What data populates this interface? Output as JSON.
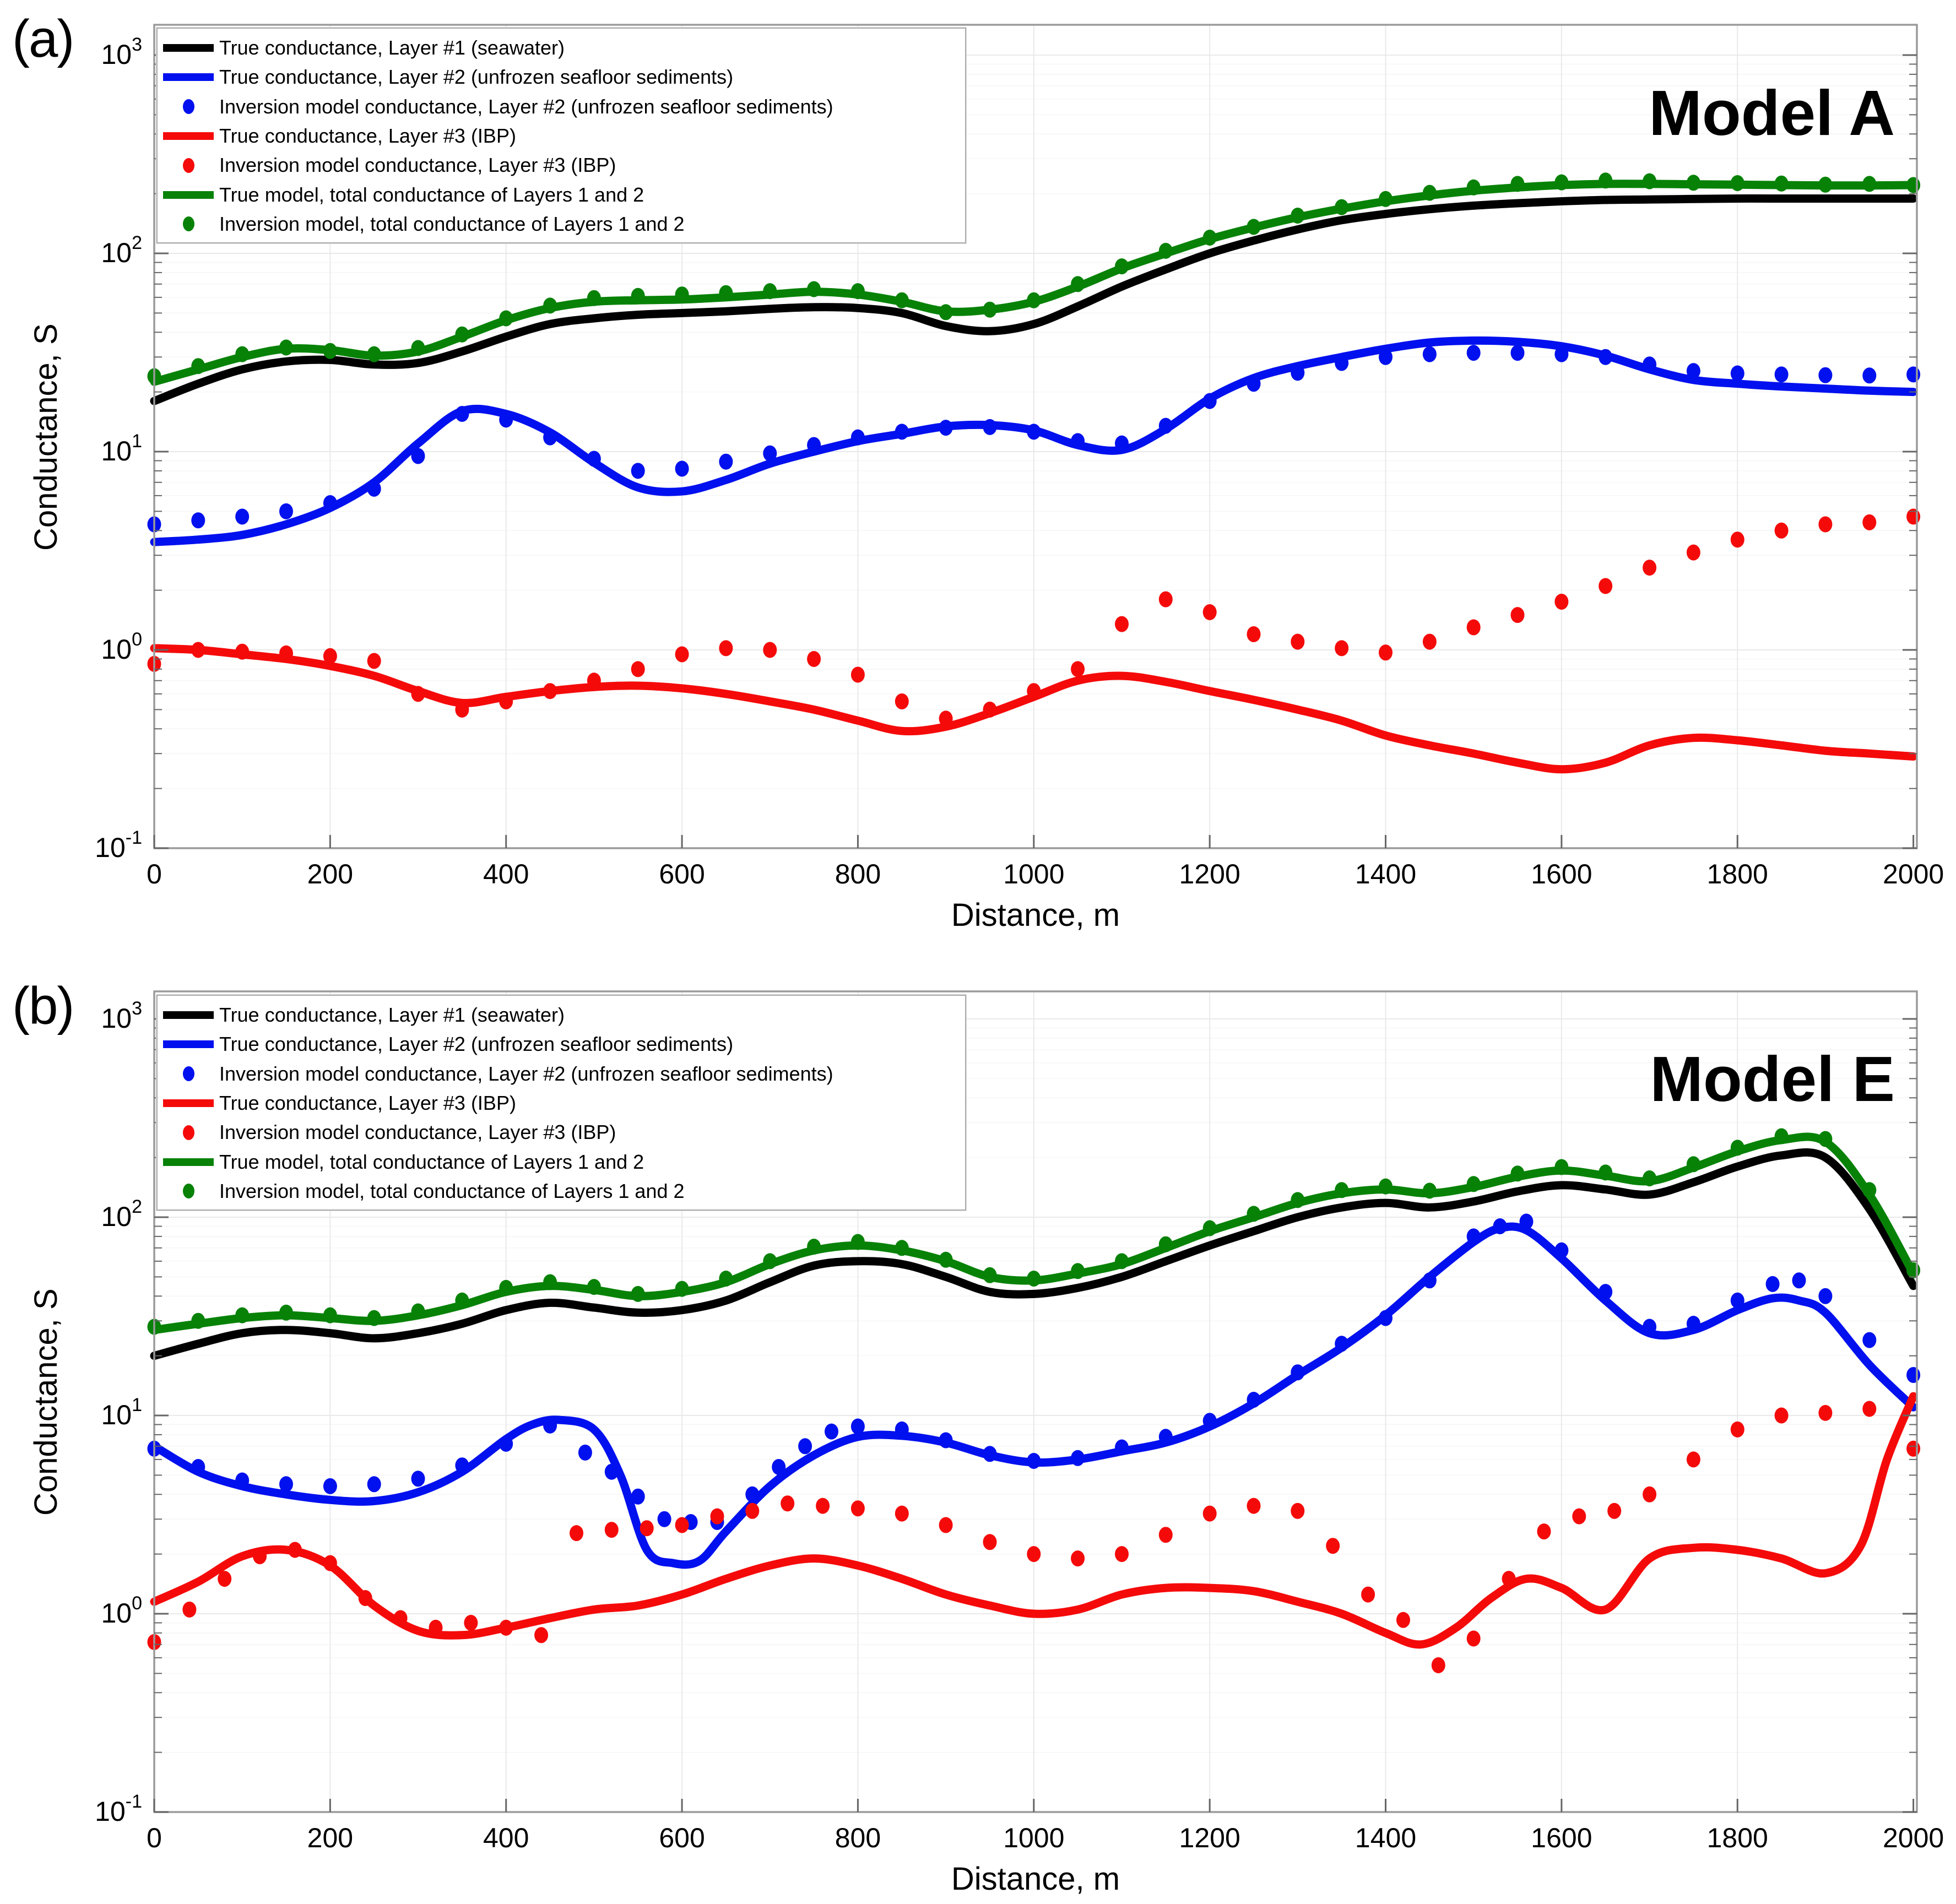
{
  "figure": {
    "background": "#ffffff"
  },
  "colors": {
    "black": "#000000",
    "blue": "#0010ee",
    "red": "#f50a0a",
    "green": "#078207",
    "frame": "#9b9b9b",
    "tick": "#666666",
    "grid_major": "#e9e9e9",
    "grid_minor": "#f6f6f6",
    "text": "#000000"
  },
  "legend": {
    "entries": [
      {
        "name": "layer1-true",
        "style": "line",
        "color": "black",
        "label": "True conductance, Layer #1 (seawater)"
      },
      {
        "name": "layer2-true",
        "style": "line",
        "color": "blue",
        "label": "True conductance, Layer #2 (unfrozen seafloor sediments)"
      },
      {
        "name": "layer2-inversion",
        "style": "dot",
        "color": "blue",
        "label": "Inversion model conductance, Layer #2 (unfrozen seafloor sediments)"
      },
      {
        "name": "layer3-true",
        "style": "line",
        "color": "red",
        "label": "True conductance, Layer #3 (IBP)"
      },
      {
        "name": "layer3-inversion",
        "style": "dot",
        "color": "red",
        "label": "Inversion model conductance, Layer #3 (IBP)"
      },
      {
        "name": "total-true",
        "style": "line",
        "color": "green",
        "label": "True model, total conductance of Layers 1 and 2"
      },
      {
        "name": "total-inversion",
        "style": "dot",
        "color": "green",
        "label": "Inversion model, total conductance of Layers 1 and 2"
      }
    ]
  },
  "panels": [
    {
      "corner_label": "(a)",
      "model_label": "Model A",
      "xlabel": "Distance, m",
      "ylabel": "Conductance, S"
    },
    {
      "corner_label": "(b)",
      "model_label": "Model E",
      "xlabel": "Distance, m",
      "ylabel": "Conductance, S"
    }
  ],
  "chart_data": [
    {
      "type": "line",
      "title": "Model A",
      "xlabel": "Distance, m",
      "ylabel": "Conductance, S",
      "x_range": [
        0,
        2000
      ],
      "y_scale": "log",
      "y_range": [
        0.1,
        1000
      ],
      "x_ticks": [
        0,
        200,
        400,
        600,
        800,
        1000,
        1200,
        1400,
        1600,
        1800,
        2000
      ],
      "y_tick_exponents": [
        -1,
        0,
        1,
        2,
        3
      ],
      "grid": true,
      "legend_position": "top-left",
      "series": [
        {
          "name": "layer1-true",
          "style": "line",
          "color": "black",
          "x": {
            "start": 0,
            "step": 50
          },
          "y": [
            18,
            22,
            26,
            28.5,
            29,
            27.5,
            28,
            32,
            38,
            44,
            47,
            49,
            50,
            51,
            52.5,
            53.5,
            53,
            50,
            43,
            40.5,
            44,
            54,
            68,
            83,
            100,
            116,
            132,
            147,
            158,
            167,
            174,
            179,
            183,
            186,
            187,
            188,
            189,
            189,
            189,
            189,
            189
          ]
        },
        {
          "name": "total-true",
          "style": "line",
          "color": "green",
          "x": {
            "start": 0,
            "step": 50
          },
          "y": [
            22.5,
            26,
            30,
            33,
            32.5,
            30.5,
            32,
            38,
            46,
            53,
            57,
            58,
            58.5,
            60,
            62,
            64,
            62,
            57,
            51,
            52,
            57,
            68,
            84,
            100,
            118,
            135,
            152,
            168,
            183,
            196,
            207,
            215,
            221,
            224,
            224,
            223,
            222,
            221,
            220,
            220,
            221
          ]
        },
        {
          "name": "layer2-true",
          "style": "line",
          "color": "blue",
          "x": {
            "start": 0,
            "step": 50
          },
          "y": [
            3.5,
            3.6,
            3.8,
            4.3,
            5.2,
            7,
            11,
            16,
            15.5,
            12.5,
            8.8,
            6.6,
            6.3,
            7.2,
            8.7,
            10,
            11.3,
            12.3,
            13.4,
            13.6,
            12.8,
            10.8,
            10.2,
            13,
            18.5,
            23.5,
            27,
            30,
            33,
            35.5,
            36.3,
            35.8,
            34,
            30.5,
            26,
            23,
            22,
            21.3,
            20.8,
            20.3,
            20
          ]
        },
        {
          "name": "layer3-true",
          "style": "line",
          "color": "red",
          "x": {
            "start": 0,
            "step": 50
          },
          "y": [
            1.02,
            1.0,
            0.95,
            0.9,
            0.83,
            0.74,
            0.62,
            0.54,
            0.58,
            0.62,
            0.65,
            0.66,
            0.64,
            0.6,
            0.55,
            0.5,
            0.44,
            0.39,
            0.41,
            0.48,
            0.58,
            0.7,
            0.74,
            0.69,
            0.62,
            0.56,
            0.5,
            0.44,
            0.37,
            0.33,
            0.3,
            0.27,
            0.25,
            0.27,
            0.33,
            0.36,
            0.35,
            0.33,
            0.31,
            0.3,
            0.29
          ]
        },
        {
          "name": "total-inversion",
          "style": "dots",
          "color": "green",
          "x": {
            "start": 0,
            "step": 50
          },
          "y": [
            24,
            27,
            31,
            33.5,
            32.2,
            31,
            33.3,
            39,
            47,
            54.5,
            59.5,
            61,
            62,
            63,
            64.5,
            66,
            64.5,
            58,
            50.5,
            52,
            58,
            70,
            86,
            103,
            120,
            136,
            155,
            171,
            188,
            202,
            215,
            224,
            228,
            233,
            231,
            227,
            226,
            225,
            222,
            224,
            221
          ]
        },
        {
          "name": "layer2-inversion",
          "style": "dots",
          "color": "blue",
          "x": {
            "start": 0,
            "step": 50
          },
          "y": [
            4.3,
            4.5,
            4.7,
            5.0,
            5.5,
            6.5,
            9.5,
            15.5,
            14.5,
            11.8,
            9.2,
            8.0,
            8.2,
            8.9,
            9.8,
            10.8,
            11.8,
            12.6,
            13.2,
            13.3,
            12.6,
            11.3,
            11.0,
            13.5,
            18,
            22,
            25,
            28,
            30,
            31,
            31.5,
            31.5,
            31,
            30,
            27.5,
            25.5,
            24.8,
            24.5,
            24.3,
            24.2,
            24.5
          ]
        },
        {
          "name": "layer3-inversion",
          "style": "dots",
          "color": "red",
          "x": {
            "start": 0,
            "step": 50
          },
          "y": [
            0.85,
            1.0,
            0.98,
            0.96,
            0.93,
            0.88,
            0.6,
            0.5,
            0.55,
            0.62,
            0.7,
            0.8,
            0.95,
            1.02,
            1.0,
            0.9,
            0.75,
            0.55,
            0.45,
            0.5,
            0.62,
            0.8,
            1.35,
            1.8,
            1.55,
            1.2,
            1.1,
            1.02,
            0.97,
            1.1,
            1.3,
            1.5,
            1.75,
            2.1,
            2.6,
            3.1,
            3.6,
            4.0,
            4.3,
            4.4,
            4.7
          ]
        }
      ]
    },
    {
      "type": "line",
      "title": "Model E",
      "xlabel": "Distance, m",
      "ylabel": "Conductance, S",
      "x_range": [
        0,
        2000
      ],
      "y_scale": "log",
      "y_range": [
        0.1,
        1000
      ],
      "x_ticks": [
        0,
        200,
        400,
        600,
        800,
        1000,
        1200,
        1400,
        1600,
        1800,
        2000
      ],
      "y_tick_exponents": [
        -1,
        0,
        1,
        2,
        3
      ],
      "grid": true,
      "legend_position": "top-left",
      "series": [
        {
          "name": "layer1-true",
          "style": "line",
          "color": "black",
          "x": {
            "start": 0,
            "step": 50
          },
          "y": [
            20,
            23,
            26,
            27,
            26,
            24.5,
            26,
            29,
            34,
            37,
            35,
            33,
            34,
            38,
            47,
            57,
            60,
            58,
            50,
            42,
            41,
            44,
            50,
            60,
            72,
            85,
            100,
            112,
            118,
            112,
            120,
            135,
            145,
            138,
            130,
            150,
            180,
            205,
            200,
            110,
            45
          ]
        },
        {
          "name": "total-true",
          "style": "line",
          "color": "green",
          "x": {
            "start": 0,
            "step": 50
          },
          "y": [
            27,
            29,
            31,
            32,
            31,
            30,
            32,
            36,
            42,
            45,
            43,
            40,
            42,
            47,
            58,
            68,
            72,
            68,
            60,
            50,
            48,
            52,
            58,
            70,
            85,
            100,
            118,
            132,
            138,
            132,
            142,
            160,
            172,
            162,
            152,
            178,
            215,
            245,
            240,
            130,
            52
          ]
        },
        {
          "name": "layer2-true",
          "style": "line",
          "color": "blue",
          "x": [
            0,
            50,
            100,
            150,
            200,
            250,
            300,
            350,
            400,
            430,
            460,
            500,
            530,
            560,
            590,
            620,
            650,
            700,
            750,
            800,
            850,
            900,
            950,
            1000,
            1050,
            1100,
            1150,
            1200,
            1250,
            1300,
            1350,
            1400,
            1450,
            1500,
            1530,
            1560,
            1600,
            1650,
            1700,
            1750,
            1800,
            1840,
            1870,
            1900,
            1950,
            2000
          ],
          "y": [
            7.0,
            5.2,
            4.4,
            4.0,
            3.75,
            3.7,
            4.1,
            5.2,
            7.6,
            9.0,
            9.5,
            8.5,
            5.0,
            2.1,
            1.8,
            1.85,
            2.6,
            4.4,
            6.3,
            7.8,
            7.9,
            7.3,
            6.3,
            5.8,
            6.0,
            6.6,
            7.3,
            8.8,
            11.5,
            16,
            22,
            32,
            50,
            75,
            88,
            86,
            62,
            38,
            26,
            27,
            34,
            39,
            38,
            33,
            18,
            11
          ]
        },
        {
          "name": "layer3-true",
          "style": "line",
          "color": "red",
          "x": [
            0,
            50,
            100,
            150,
            200,
            250,
            300,
            350,
            400,
            450,
            500,
            550,
            600,
            650,
            700,
            750,
            800,
            850,
            900,
            950,
            1000,
            1050,
            1100,
            1150,
            1200,
            1250,
            1300,
            1350,
            1400,
            1440,
            1480,
            1520,
            1560,
            1600,
            1650,
            1700,
            1750,
            1800,
            1850,
            1900,
            1940,
            1970,
            2000
          ],
          "y": [
            1.15,
            1.45,
            1.95,
            2.1,
            1.75,
            1.1,
            0.82,
            0.78,
            0.85,
            0.95,
            1.05,
            1.1,
            1.25,
            1.5,
            1.75,
            1.9,
            1.75,
            1.5,
            1.25,
            1.1,
            1.0,
            1.05,
            1.25,
            1.35,
            1.35,
            1.3,
            1.15,
            1.0,
            0.8,
            0.7,
            0.85,
            1.2,
            1.5,
            1.35,
            1.05,
            1.9,
            2.15,
            2.1,
            1.9,
            1.6,
            2.2,
            6,
            12.5
          ]
        },
        {
          "name": "total-inversion",
          "style": "dots",
          "color": "green",
          "x": {
            "start": 0,
            "step": 50
          },
          "y": [
            28,
            30,
            32,
            33,
            32,
            31,
            33.5,
            38,
            44,
            47,
            44.5,
            41,
            43.5,
            49,
            60,
            71,
            75,
            70,
            61,
            51,
            49,
            53.5,
            60,
            73,
            88,
            104,
            122,
            137,
            143,
            136,
            147,
            166,
            179,
            168,
            157,
            185,
            224,
            256,
            248,
            137,
            54
          ]
        },
        {
          "name": "layer2-inversion",
          "style": "dots",
          "color": "blue",
          "x": [
            0,
            50,
            100,
            150,
            200,
            250,
            300,
            350,
            400,
            450,
            490,
            520,
            550,
            580,
            610,
            640,
            680,
            710,
            740,
            770,
            800,
            850,
            900,
            950,
            1000,
            1050,
            1100,
            1150,
            1200,
            1250,
            1300,
            1350,
            1400,
            1450,
            1500,
            1530,
            1560,
            1600,
            1650,
            1700,
            1750,
            1800,
            1840,
            1870,
            1900,
            1950,
            2000
          ],
          "y": [
            6.8,
            5.5,
            4.7,
            4.5,
            4.4,
            4.5,
            4.8,
            5.6,
            7.2,
            8.9,
            6.5,
            5.2,
            3.9,
            3.0,
            2.9,
            2.9,
            4.0,
            5.5,
            7.0,
            8.3,
            8.8,
            8.5,
            7.5,
            6.4,
            5.9,
            6.1,
            6.9,
            7.8,
            9.4,
            12.0,
            16.5,
            23,
            31,
            48,
            80,
            90,
            95,
            68,
            42,
            28,
            29,
            38,
            46,
            48,
            40,
            24,
            16
          ]
        },
        {
          "name": "layer3-inversion",
          "style": "dots",
          "color": "red",
          "x": [
            0,
            40,
            80,
            120,
            160,
            200,
            240,
            280,
            320,
            360,
            400,
            440,
            480,
            520,
            560,
            600,
            640,
            680,
            720,
            760,
            800,
            850,
            900,
            950,
            1000,
            1050,
            1100,
            1150,
            1200,
            1250,
            1300,
            1340,
            1380,
            1420,
            1460,
            1500,
            1540,
            1580,
            1620,
            1660,
            1700,
            1750,
            1800,
            1850,
            1900,
            1950,
            2000
          ],
          "y": [
            0.72,
            1.05,
            1.5,
            1.95,
            2.1,
            1.8,
            1.2,
            0.95,
            0.85,
            0.9,
            0.85,
            0.78,
            2.55,
            2.65,
            2.7,
            2.8,
            3.1,
            3.3,
            3.6,
            3.5,
            3.4,
            3.2,
            2.8,
            2.3,
            2.0,
            1.9,
            2.0,
            2.5,
            3.2,
            3.5,
            3.3,
            2.2,
            1.25,
            0.93,
            0.55,
            0.75,
            1.5,
            2.6,
            3.1,
            3.3,
            4.0,
            6.0,
            8.5,
            10.0,
            10.3,
            10.8,
            6.8
          ]
        }
      ]
    }
  ]
}
